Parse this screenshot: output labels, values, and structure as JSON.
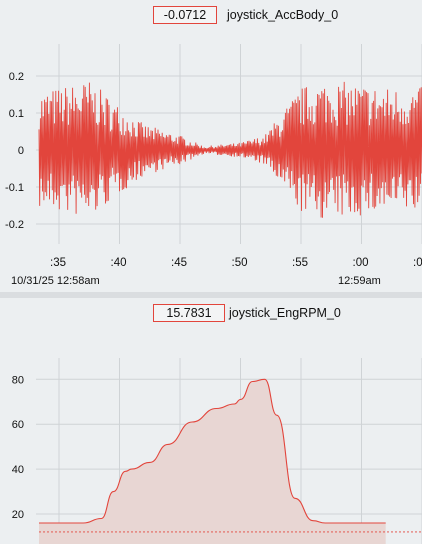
{
  "panels": [
    {
      "value": "-0.0712",
      "signal": "joystick_AccBody_0",
      "y_ticks": [
        "0.2",
        "0.1",
        "0",
        "-0.1",
        "-0.2"
      ],
      "x_ticks": [
        ":35",
        ":40",
        ":45",
        ":50",
        ":55",
        ":00",
        ":0"
      ],
      "date_left": "10/31/25 12:58am",
      "date_right": "12:59am"
    },
    {
      "value": "15.7831",
      "signal": "joystick_EngRPM_0",
      "y_ticks": [
        "80",
        "60",
        "40",
        "20"
      ]
    }
  ],
  "colors": {
    "trace": "#e2453c",
    "fill": "#e8d6d3",
    "grid": "#cfd3d6"
  },
  "chart_data": [
    {
      "type": "line",
      "title": "",
      "series": [
        {
          "name": "joystick_AccBody_0"
        }
      ],
      "ylim": [
        -0.25,
        0.25
      ],
      "x_ticks": [
        ":35",
        ":40",
        ":45",
        ":50",
        ":55",
        ":00"
      ],
      "envelope": {
        "x_sec": [
          32,
          35,
          37.5,
          40,
          42,
          45,
          47,
          50,
          52,
          55,
          57,
          60,
          62
        ],
        "amplitude": [
          0.15,
          0.17,
          0.19,
          0.12,
          0.07,
          0.04,
          0.01,
          0.02,
          0.04,
          0.17,
          0.19,
          0.18,
          0.17
        ]
      }
    },
    {
      "type": "area",
      "title": "",
      "series": [
        {
          "name": "joystick_EngRPM_0"
        }
      ],
      "ylim": [
        10,
        90
      ],
      "x_sec": [
        32,
        37,
        38.5,
        39.5,
        40.5,
        41,
        42.5,
        44,
        46,
        48,
        49.5,
        50,
        51,
        52,
        53,
        54.5,
        56,
        57,
        62
      ],
      "values": [
        16,
        16,
        18,
        30,
        39,
        40,
        43,
        51,
        61,
        67,
        69,
        71,
        79,
        80,
        64,
        27,
        17,
        16,
        16
      ],
      "reference_line": 12
    }
  ]
}
